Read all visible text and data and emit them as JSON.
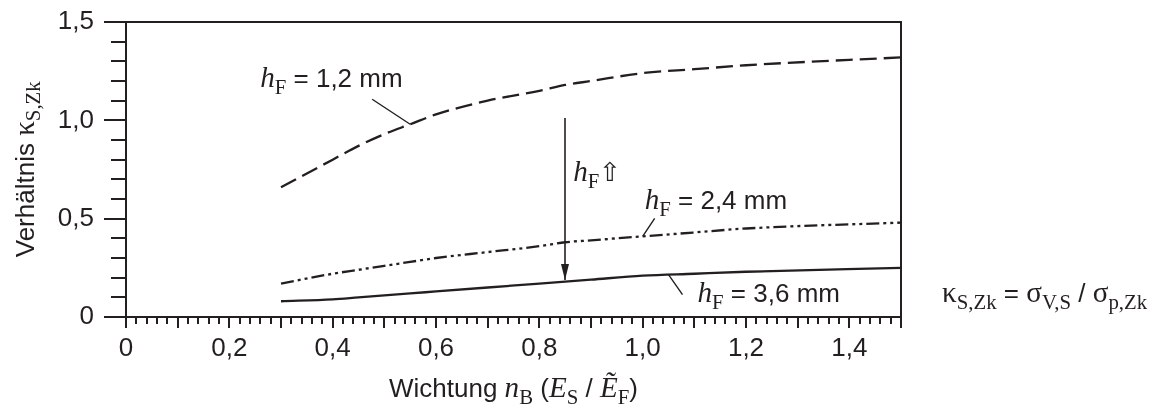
{
  "chart_data": {
    "type": "line",
    "xlabel": "Wichtung n$_{B}$ (E$_{S}$ / Ẽ$_{F}$)",
    "ylabel": "Verhältnis κ$_{S,Zk}$",
    "x": [
      0.3,
      0.4,
      0.45,
      0.5,
      0.55,
      0.6,
      0.7,
      0.8,
      0.85,
      0.9,
      1.0,
      1.1,
      1.2,
      1.5
    ],
    "series": [
      {
        "name": "h$_{F}$ = 1,2 mm",
        "color": "#231f20",
        "line_style": "dashed",
        "values": [
          0.66,
          0.8,
          0.87,
          0.93,
          0.98,
          1.03,
          1.1,
          1.15,
          1.18,
          1.2,
          1.24,
          1.26,
          1.28,
          1.32
        ]
      },
      {
        "name": "h$_{F}$ = 2,4 mm",
        "color": "#231f20",
        "line_style": "dashdotdot",
        "values": [
          0.17,
          0.22,
          0.24,
          0.26,
          0.28,
          0.3,
          0.33,
          0.36,
          0.38,
          0.39,
          0.41,
          0.43,
          0.45,
          0.48
        ]
      },
      {
        "name": "h$_{F}$ = 3,6 mm",
        "color": "#231f20",
        "line_style": "solid",
        "values": [
          0.08,
          0.09,
          0.1,
          0.11,
          0.12,
          0.13,
          0.15,
          0.17,
          0.18,
          0.19,
          0.21,
          0.22,
          0.23,
          0.25
        ]
      }
    ],
    "xlim": [
      0,
      1.5
    ],
    "ylim": [
      0,
      1.5
    ],
    "xticks": [
      0,
      {
        "value": 0.02,
        "label": null
      },
      {
        "value": 0.04,
        "label": null
      },
      {
        "value": 0.06,
        "label": null
      },
      {
        "value": 0.08,
        "label": null
      },
      {
        "value": 0.1,
        "label": null
      },
      {
        "value": 0.12,
        "label": null
      },
      {
        "value": 0.14,
        "label": null
      },
      {
        "value": 0.16,
        "label": null
      },
      {
        "value": 0.18,
        "label": null
      },
      {
        "value": 0.2,
        "label": "0,2"
      },
      {
        "value": 0.22,
        "label": null
      },
      {
        "value": 0.24,
        "label": null
      },
      {
        "value": 0.26,
        "label": null
      },
      {
        "value": 0.28,
        "label": null
      },
      {
        "value": 0.3,
        "label": null
      },
      {
        "value": 0.32,
        "label": null
      },
      {
        "value": 0.34,
        "label": null
      },
      {
        "value": 0.36,
        "label": null
      },
      {
        "value": 0.38,
        "label": null
      },
      {
        "value": 0.4,
        "label": "0,4"
      },
      {
        "value": 0.42,
        "label": null
      },
      {
        "value": 0.44,
        "label": null
      },
      {
        "value": 0.46,
        "label": null
      },
      {
        "value": 0.48,
        "label": null
      },
      {
        "value": 0.5,
        "label": null
      },
      {
        "value": 0.52,
        "label": null
      },
      {
        "value": 0.54,
        "label": null
      },
      {
        "value": 0.56,
        "label": null
      },
      {
        "value": 0.58,
        "label": null
      },
      {
        "value": 0.6,
        "label": "0,6"
      },
      {
        "value": 0.62,
        "label": null
      },
      {
        "value": 0.64,
        "label": null
      },
      {
        "value": 0.66,
        "label": null
      },
      {
        "value": 0.68,
        "label": null
      },
      {
        "value": 0.7,
        "label": null
      },
      {
        "value": 0.72,
        "label": null
      },
      {
        "value": 0.74,
        "label": null
      },
      {
        "value": 0.76,
        "label": null
      },
      {
        "value": 0.78,
        "label": null
      },
      {
        "value": 0.8,
        "label": "0,8"
      },
      {
        "value": 0.82,
        "label": null
      },
      {
        "value": 0.84,
        "label": null
      },
      {
        "value": 0.86,
        "label": null
      },
      {
        "value": 0.88,
        "label": null
      },
      {
        "value": 0.9,
        "label": null
      },
      {
        "value": 0.92,
        "label": null
      },
      {
        "value": 0.94,
        "label": null
      },
      {
        "value": 0.96,
        "label": null
      },
      {
        "value": 0.98,
        "label": null
      },
      {
        "value": 1.0,
        "label": "1,0"
      },
      {
        "value": 1.02,
        "label": null
      },
      {
        "value": 1.04,
        "label": null
      },
      {
        "value": 1.06,
        "label": null
      },
      {
        "value": 1.08,
        "label": null
      },
      {
        "value": 1.1,
        "label": null
      },
      {
        "value": 1.12,
        "label": null
      },
      {
        "value": 1.14,
        "label": null
      },
      {
        "value": 1.16,
        "label": null
      },
      {
        "value": 1.18,
        "label": null
      },
      {
        "value": 1.2,
        "label": "1,2"
      },
      {
        "value": 1.22,
        "label": null
      },
      {
        "value": 1.24,
        "label": null
      },
      {
        "value": 1.26,
        "label": null
      },
      {
        "value": 1.28,
        "label": null
      },
      {
        "value": 1.3,
        "label": null
      },
      {
        "value": 1.32,
        "label": null
      },
      {
        "value": 1.34,
        "label": null
      },
      {
        "value": 1.36,
        "label": null
      },
      {
        "value": 1.38,
        "label": null
      },
      {
        "value": 1.4,
        "label": "1,4"
      },
      {
        "value": 1.42,
        "label": null
      },
      {
        "value": 1.44,
        "label": null
      },
      {
        "value": 1.46,
        "label": null
      },
      {
        "value": 1.48,
        "label": null
      },
      {
        "value": 1.5,
        "label": null
      }
    ],
    "yticks": [
      0,
      {
        "value": 0.1,
        "label": null
      },
      {
        "value": 0.2,
        "label": null
      },
      {
        "value": 0.3,
        "label": null
      },
      {
        "value": 0.4,
        "label": null
      },
      {
        "value": 0.5,
        "label": "0,5"
      },
      {
        "value": 0.6,
        "label": null
      },
      {
        "value": 0.7,
        "label": null
      },
      {
        "value": 0.8,
        "label": null
      },
      {
        "value": 0.9,
        "label": null
      },
      {
        "value": 1.0,
        "label": "1,0"
      },
      {
        "value": 1.1,
        "label": null
      },
      {
        "value": 1.2,
        "label": null
      },
      {
        "value": 1.3,
        "label": null
      },
      {
        "value": 1.4,
        "label": null
      },
      {
        "value": 1.5,
        "label": "1,5"
      }
    ],
    "annotations": [
      {
        "text": "h$_{F}$⇧",
        "x": 0.85,
        "y": 0.19
      },
      "κ$_{S,Zk}$ = σ$_{V,S}$ / σ$_{p,Zk}$"
    ]
  }
}
